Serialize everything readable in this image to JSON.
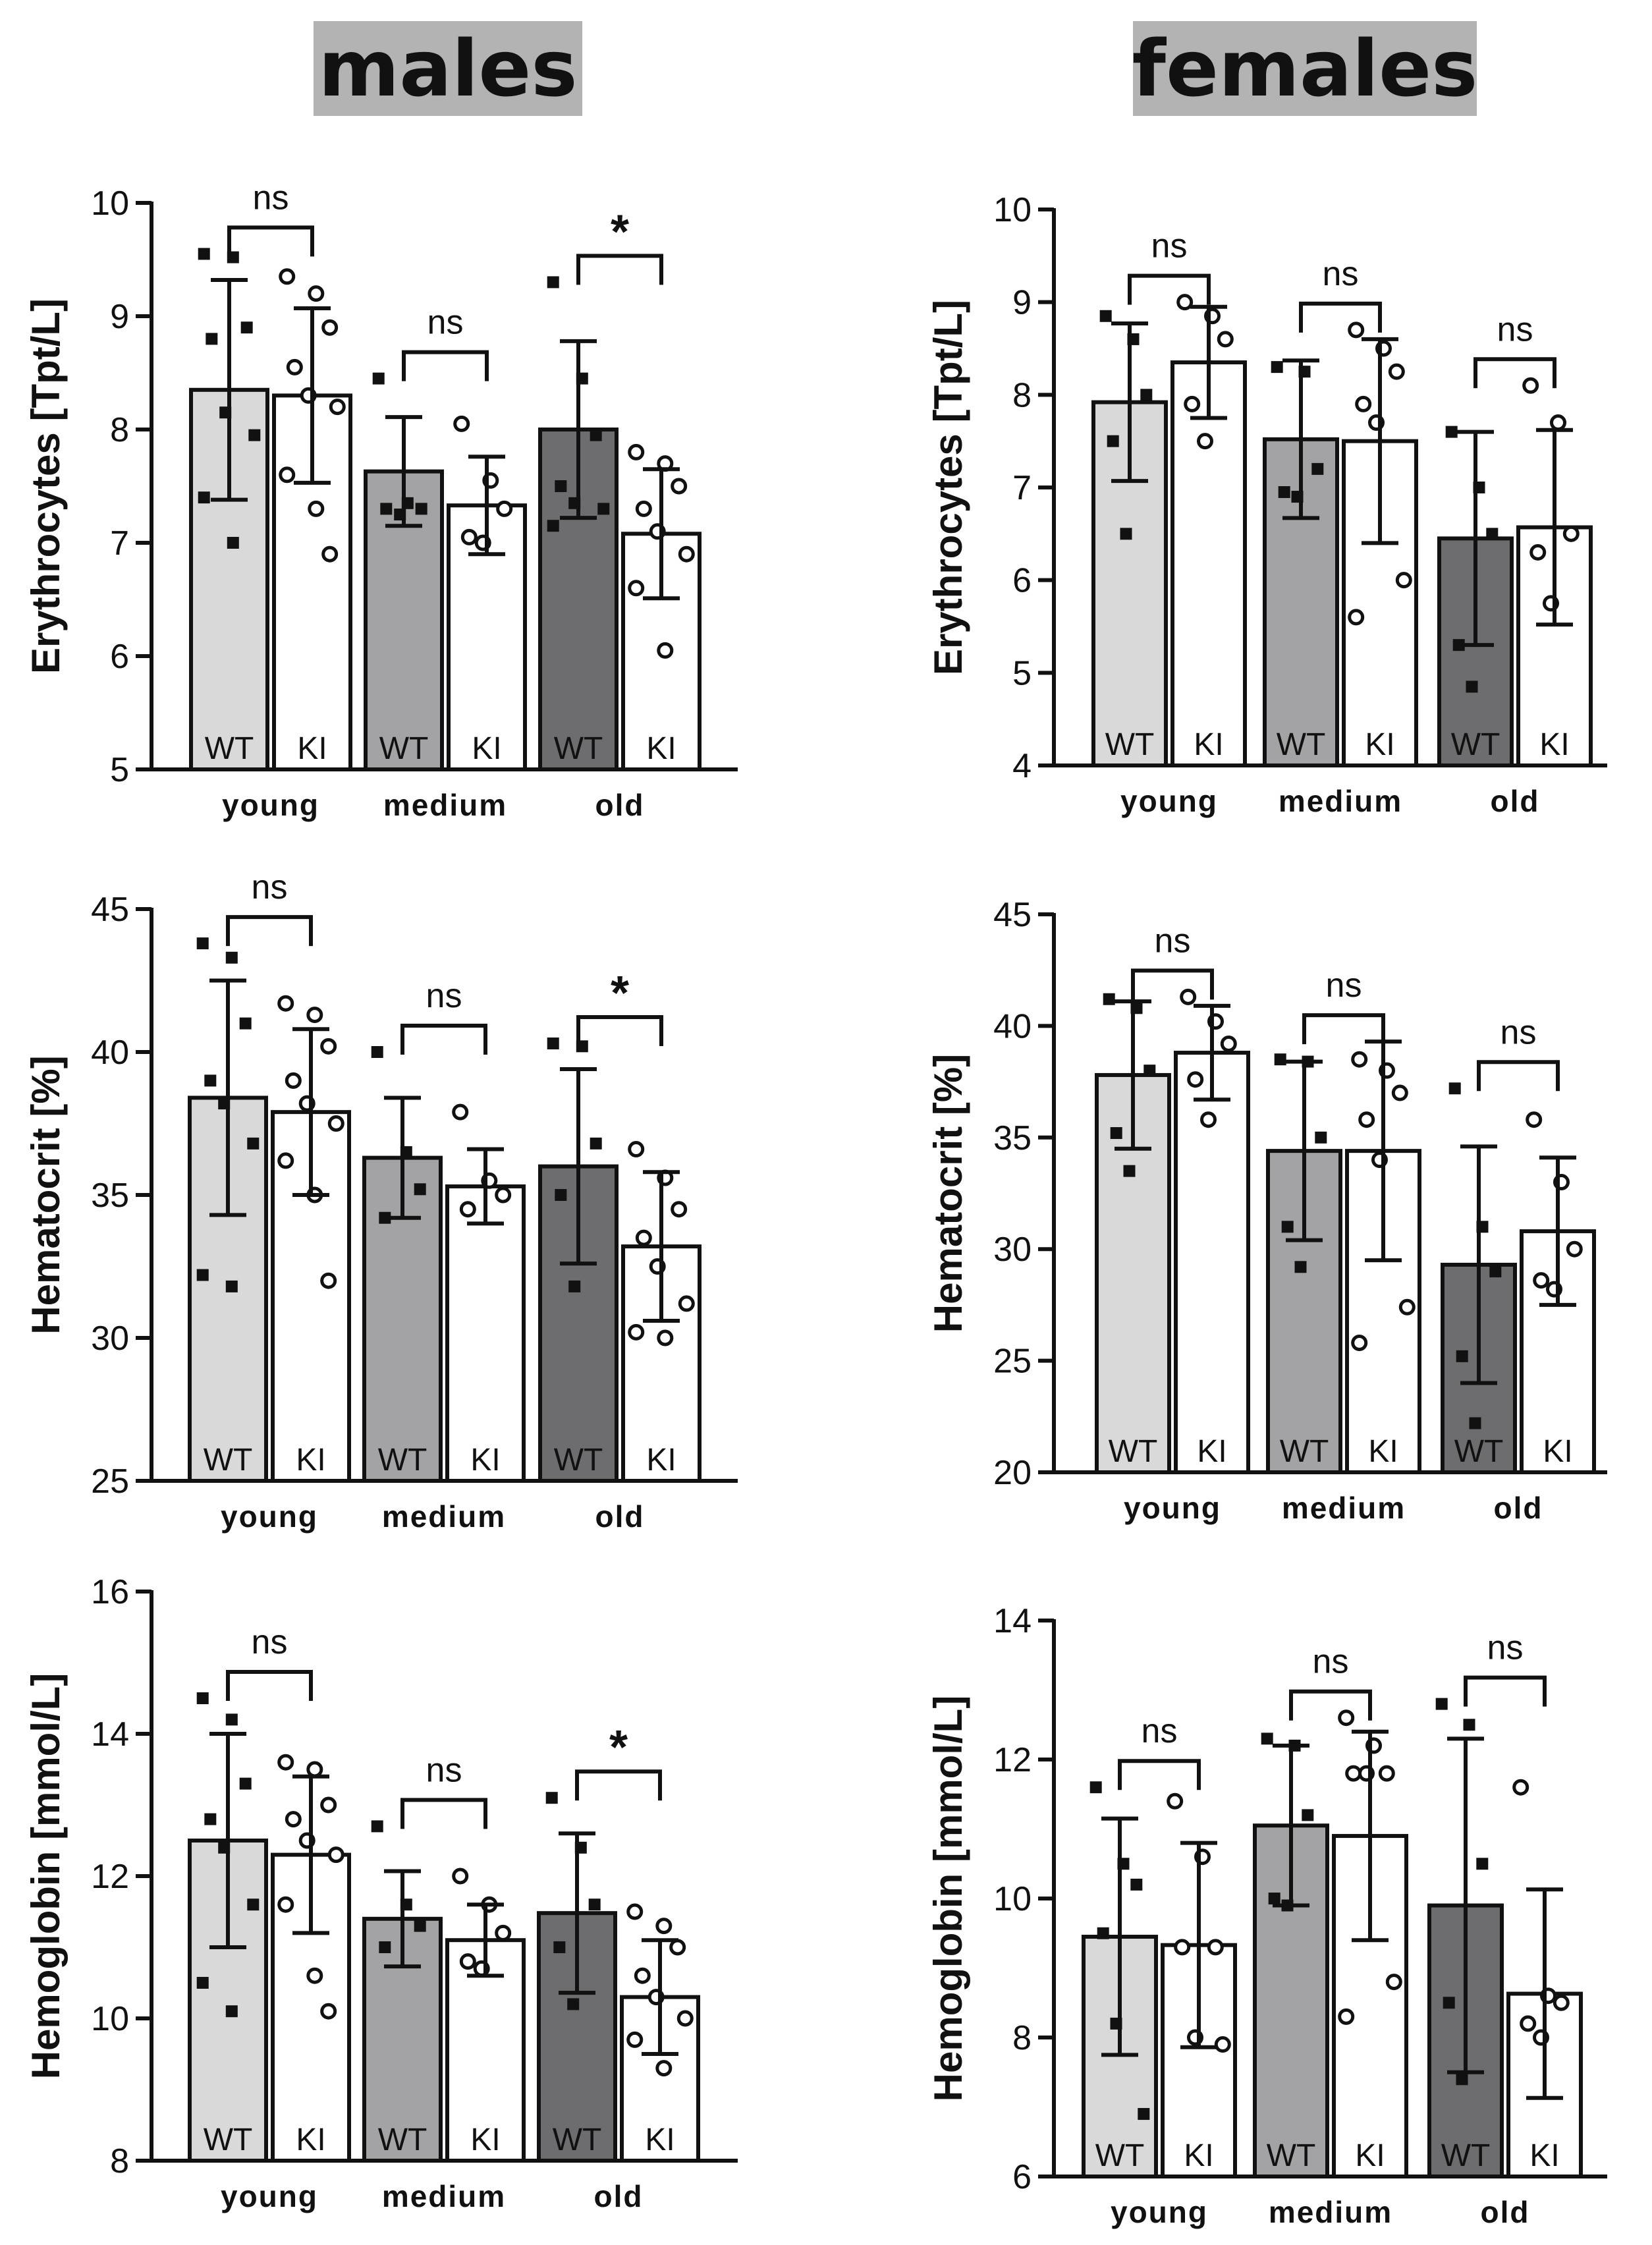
{
  "titles": {
    "males": "males",
    "females": "females"
  },
  "colors": {
    "young": "#d9d9d9",
    "medium": "#a3a3a6",
    "old": "#6d6d70",
    "ki": "#ffffff",
    "ink": "#111111"
  },
  "chart_data": [
    {
      "id": "males-erythrocytes",
      "type": "bar",
      "ylabel": "Erythrocytes [Tpt/L]",
      "ylim": [
        5,
        10
      ],
      "yticks": [
        5,
        6,
        7,
        8,
        9,
        10
      ],
      "categories": [
        "young",
        "medium",
        "old"
      ],
      "bar_labels": [
        "WT",
        "KI"
      ],
      "significance": [
        "ns",
        "ns",
        "*"
      ],
      "series": [
        {
          "name": "WT",
          "means": [
            8.35,
            7.63,
            8.0
          ],
          "sd": [
            0.97,
            0.48,
            0.78
          ],
          "points": [
            [
              9.55,
              9.52,
              8.9,
              8.8,
              8.15,
              7.95,
              7.4,
              7.0
            ],
            [
              8.45,
              7.35,
              7.3,
              7.3,
              7.25
            ],
            [
              9.3,
              8.45,
              7.95,
              7.5,
              7.35,
              7.3,
              7.15
            ]
          ]
        },
        {
          "name": "KI",
          "means": [
            8.3,
            7.33,
            7.08
          ],
          "sd": [
            0.77,
            0.43,
            0.57
          ],
          "points": [
            [
              9.35,
              9.2,
              8.9,
              8.55,
              8.3,
              8.2,
              7.6,
              7.3,
              6.9
            ],
            [
              8.05,
              7.55,
              7.3,
              7.05,
              7.0
            ],
            [
              7.8,
              7.7,
              7.5,
              7.3,
              7.1,
              6.9,
              6.6,
              6.05
            ]
          ]
        }
      ]
    },
    {
      "id": "males-hematocrit",
      "type": "bar",
      "ylabel": "Hematocrit [%]",
      "ylim": [
        25,
        45
      ],
      "yticks": [
        25,
        30,
        35,
        40,
        45
      ],
      "categories": [
        "young",
        "medium",
        "old"
      ],
      "bar_labels": [
        "WT",
        "KI"
      ],
      "significance": [
        "ns",
        "ns",
        "*"
      ],
      "series": [
        {
          "name": "WT",
          "means": [
            38.4,
            36.3,
            36.0
          ],
          "sd": [
            4.1,
            2.1,
            3.4
          ],
          "points": [
            [
              43.8,
              43.3,
              41.0,
              39.0,
              38.2,
              36.8,
              32.2,
              31.8
            ],
            [
              40.0,
              36.5,
              35.2,
              34.2
            ],
            [
              40.3,
              40.2,
              36.8,
              35.0,
              31.8
            ]
          ]
        },
        {
          "name": "KI",
          "means": [
            37.9,
            35.3,
            33.2
          ],
          "sd": [
            2.9,
            1.3,
            2.6
          ],
          "points": [
            [
              41.7,
              41.3,
              40.2,
              39.0,
              38.2,
              37.5,
              36.2,
              35.0,
              32.0
            ],
            [
              37.9,
              35.5,
              35.0,
              34.5
            ],
            [
              36.6,
              35.6,
              34.5,
              33.5,
              32.5,
              31.2,
              30.2,
              30.0
            ]
          ]
        }
      ]
    },
    {
      "id": "males-hemoglobin",
      "type": "bar",
      "ylabel": "Hemoglobin [mmol/L]",
      "ylim": [
        8,
        16
      ],
      "yticks": [
        8,
        10,
        12,
        14,
        16
      ],
      "categories": [
        "young",
        "medium",
        "old"
      ],
      "bar_labels": [
        "WT",
        "KI"
      ],
      "significance": [
        "ns",
        "ns",
        "*"
      ],
      "series": [
        {
          "name": "WT",
          "means": [
            12.5,
            11.4,
            11.48
          ],
          "sd": [
            1.5,
            0.67,
            1.12
          ],
          "points": [
            [
              14.5,
              14.2,
              13.3,
              12.8,
              12.4,
              11.6,
              10.5,
              10.1
            ],
            [
              12.7,
              11.6,
              11.3,
              11.0
            ],
            [
              13.1,
              12.4,
              11.6,
              11.0,
              10.2
            ]
          ]
        },
        {
          "name": "KI",
          "means": [
            12.3,
            11.1,
            10.3
          ],
          "sd": [
            1.1,
            0.5,
            0.8
          ],
          "points": [
            [
              13.6,
              13.5,
              13.0,
              12.8,
              12.5,
              12.3,
              11.6,
              10.6,
              10.1
            ],
            [
              12.0,
              11.6,
              11.2,
              10.8,
              10.7
            ],
            [
              11.5,
              11.3,
              11.0,
              10.6,
              10.3,
              10.0,
              9.7,
              9.3
            ]
          ]
        }
      ]
    },
    {
      "id": "females-erythrocytes",
      "type": "bar",
      "ylabel": "Erythrocytes [Tpt/L]",
      "ylim": [
        4,
        10
      ],
      "yticks": [
        4,
        5,
        6,
        7,
        8,
        9,
        10
      ],
      "categories": [
        "young",
        "medium",
        "old"
      ],
      "bar_labels": [
        "WT",
        "KI"
      ],
      "significance": [
        "ns",
        "ns",
        "ns"
      ],
      "series": [
        {
          "name": "WT",
          "means": [
            7.92,
            7.52,
            6.45
          ],
          "sd": [
            0.85,
            0.85,
            1.15
          ],
          "points": [
            [
              8.85,
              8.6,
              8.0,
              7.5,
              6.5
            ],
            [
              8.3,
              8.25,
              7.2,
              6.95,
              6.9
            ],
            [
              7.6,
              7.0,
              6.5,
              5.3,
              4.85
            ]
          ]
        },
        {
          "name": "KI",
          "means": [
            8.35,
            7.5,
            6.57
          ],
          "sd": [
            0.6,
            1.1,
            1.05
          ],
          "points": [
            [
              9.0,
              8.85,
              8.6,
              7.9,
              7.5
            ],
            [
              8.7,
              8.5,
              8.25,
              7.9,
              7.7,
              6.0,
              5.6
            ],
            [
              8.1,
              7.7,
              6.5,
              6.3,
              5.75
            ]
          ]
        }
      ]
    },
    {
      "id": "females-hematocrit",
      "type": "bar",
      "ylabel": "Hematocrit [%]",
      "ylim": [
        20,
        45
      ],
      "yticks": [
        20,
        25,
        30,
        35,
        40,
        45
      ],
      "categories": [
        "young",
        "medium",
        "old"
      ],
      "bar_labels": [
        "WT",
        "KI"
      ],
      "significance": [
        "ns",
        "ns",
        "ns"
      ],
      "series": [
        {
          "name": "WT",
          "means": [
            37.8,
            34.4,
            29.3
          ],
          "sd": [
            3.3,
            4.0,
            5.3
          ],
          "points": [
            [
              41.2,
              40.8,
              38.0,
              35.2,
              33.5
            ],
            [
              38.5,
              38.4,
              35.0,
              31.0,
              29.2
            ],
            [
              37.2,
              31.0,
              29.0,
              25.2,
              22.2
            ]
          ]
        },
        {
          "name": "KI",
          "means": [
            38.8,
            34.4,
            30.8
          ],
          "sd": [
            2.1,
            4.9,
            3.3
          ],
          "points": [
            [
              41.3,
              40.2,
              39.2,
              37.6,
              35.8
            ],
            [
              38.5,
              38.0,
              37.0,
              35.8,
              34.0,
              27.4,
              25.8
            ],
            [
              35.8,
              33.0,
              30.0,
              28.6,
              28.2
            ]
          ]
        }
      ]
    },
    {
      "id": "females-hemoglobin",
      "type": "bar",
      "ylabel": "Hemoglobin [mmol/L]",
      "ylim": [
        6,
        14
      ],
      "yticks": [
        6,
        8,
        10,
        12,
        14
      ],
      "categories": [
        "young",
        "medium",
        "old"
      ],
      "bar_labels": [
        "WT",
        "KI"
      ],
      "significance": [
        "ns",
        "ns",
        "ns"
      ],
      "series": [
        {
          "name": "WT",
          "means": [
            9.45,
            11.05,
            9.9
          ],
          "sd": [
            1.7,
            1.15,
            2.4
          ],
          "points": [
            [
              11.6,
              10.5,
              10.2,
              9.5,
              8.2,
              6.9
            ],
            [
              12.3,
              12.2,
              11.2,
              10.0,
              9.9
            ],
            [
              12.8,
              12.5,
              10.5,
              8.5,
              7.4
            ]
          ]
        },
        {
          "name": "KI",
          "means": [
            9.33,
            10.9,
            8.63
          ],
          "sd": [
            1.47,
            1.5,
            1.5
          ],
          "points": [
            [
              11.4,
              10.6,
              9.3,
              9.3,
              8.0,
              7.9
            ],
            [
              12.6,
              12.2,
              11.8,
              11.8,
              11.8,
              8.8,
              8.3
            ],
            [
              11.6,
              8.6,
              8.5,
              8.2,
              8.0
            ]
          ]
        }
      ]
    }
  ]
}
